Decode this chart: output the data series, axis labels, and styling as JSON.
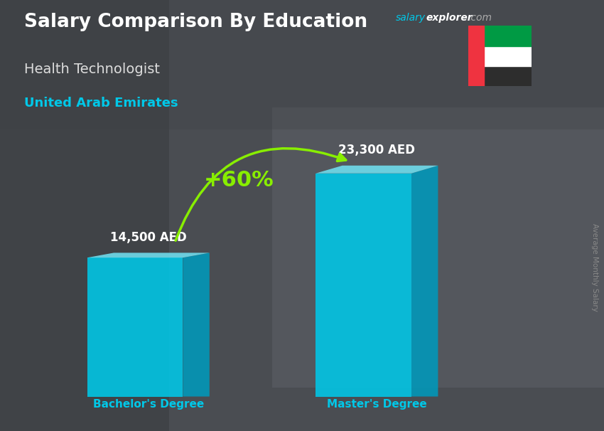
{
  "title_main": "Salary Comparison By Education",
  "subtitle_job": "Health Technologist",
  "subtitle_country": "United Arab Emirates",
  "categories": [
    "Bachelor's Degree",
    "Master's Degree"
  ],
  "values": [
    14500,
    23300
  ],
  "value_labels": [
    "14,500 AED",
    "23,300 AED"
  ],
  "pct_change": "+60%",
  "bar_color_face": "#00c8e8",
  "bar_color_side": "#0099bb",
  "bar_color_top": "#70dff0",
  "ylabel": "Average Monthly Salary",
  "bg_color": "#555860",
  "title_color": "#ffffff",
  "subtitle_job_color": "#dddddd",
  "subtitle_country_color": "#00c8e8",
  "category_label_color": "#00c8e8",
  "value_label_color": "#ffffff",
  "pct_color": "#88ee00",
  "arrow_color": "#88ee00",
  "salary_text_color": "#00c8e8",
  "explorer_text_color": "#ffffff",
  "dotcom_text_color": "#aaaaaa",
  "flag_green": "#009A44",
  "flag_white": "#ffffff",
  "flag_black": "#2d2d2d",
  "flag_red": "#EF3340"
}
